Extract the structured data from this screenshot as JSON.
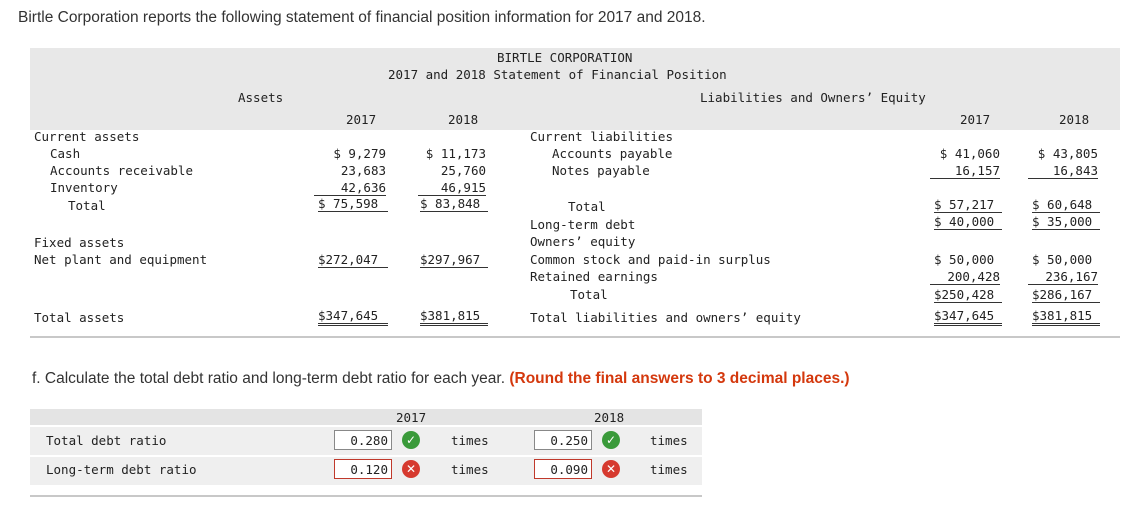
{
  "intro": "Birtle Corporation reports the following statement of financial position information for 2017 and 2018.",
  "statement": {
    "company": "BIRTLE CORPORATION",
    "title": "2017 and 2018 Statement of Financial Position",
    "assets_header": "Assets",
    "liab_header": "Liabilities and Owners’ Equity",
    "year1": "2017",
    "year2": "2018",
    "current_assets": "Current assets",
    "cash": {
      "label": "Cash",
      "y1": "$  9,279",
      "y2": "$ 11,173"
    },
    "ar": {
      "label": "Accounts receivable",
      "y1": "23,683",
      "y2": "25,760"
    },
    "inventory": {
      "label": "Inventory",
      "y1": "42,636",
      "y2": "46,915"
    },
    "ca_total": {
      "label": "Total",
      "y1": "$ 75,598",
      "y2": "$ 83,848"
    },
    "fixed_assets": "Fixed assets",
    "ppe": {
      "label": "Net plant and equipment",
      "y1": "$272,047",
      "y2": "$297,967"
    },
    "total_assets": {
      "label": "Total assets",
      "y1": "$347,645",
      "y2": "$381,815"
    },
    "current_liabilities": "Current liabilities",
    "ap": {
      "label": "Accounts payable",
      "y1": "$ 41,060",
      "y2": "$ 43,805"
    },
    "np": {
      "label": "Notes payable",
      "y1": "16,157",
      "y2": "16,843"
    },
    "cl_total": {
      "label": "Total",
      "y1": "$ 57,217",
      "y2": "$ 60,648"
    },
    "ltd": {
      "label": "Long-term debt",
      "y1": "$ 40,000",
      "y2": "$ 35,000"
    },
    "owners_equity": "Owners’ equity",
    "common": {
      "label": "Common stock and paid-in surplus",
      "y1": "$ 50,000",
      "y2": "$ 50,000"
    },
    "re": {
      "label": "Retained earnings",
      "y1": "200,428",
      "y2": "236,167"
    },
    "oe_total": {
      "label": "Total",
      "y1": "$250,428",
      "y2": "$286,167"
    },
    "tl_oe": {
      "label": "Total liabilities and owners’ equity",
      "y1": "$347,645",
      "y2": "$381,815"
    }
  },
  "question": {
    "text": "f. Calculate the total debt ratio and long-term debt ratio for each year. ",
    "note": "(Round the final answers to 3 decimal places.)"
  },
  "ratios": {
    "year1": "2017",
    "year2": "2018",
    "unit": "times",
    "rows": [
      {
        "label": "Total debt ratio",
        "y1": "0.280",
        "y1_status": "correct",
        "y2": "0.250",
        "y2_status": "correct"
      },
      {
        "label": "Long-term debt ratio",
        "y1": "0.120",
        "y1_status": "incorrect",
        "y2": "0.090",
        "y2_status": "incorrect"
      }
    ]
  }
}
